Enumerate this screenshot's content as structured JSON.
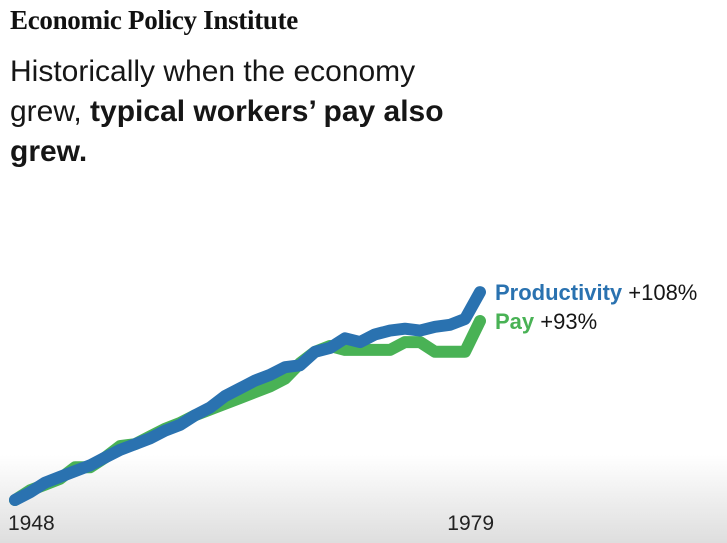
{
  "header": {
    "org_name": "Economic Policy Institute",
    "headline_regular": "Historically when the economy grew, ",
    "headline_bold": "typical workers’ pay also grew."
  },
  "colors": {
    "productivity": "#2a72b0",
    "pay": "#49b255",
    "text": "#161616"
  },
  "chart_data": {
    "type": "line",
    "title": "",
    "xlabel": "",
    "ylabel": "",
    "x_tick_labels": [
      "1948",
      "1979"
    ],
    "xlim": [
      1948,
      1979
    ],
    "ylim": [
      0,
      120
    ],
    "grid": false,
    "legend": "inline-right",
    "x": [
      1948,
      1949,
      1950,
      1951,
      1952,
      1953,
      1954,
      1955,
      1956,
      1957,
      1958,
      1959,
      1960,
      1961,
      1962,
      1963,
      1964,
      1965,
      1966,
      1967,
      1968,
      1969,
      1970,
      1971,
      1972,
      1973,
      1974,
      1975,
      1976,
      1977,
      1978,
      1979
    ],
    "series": [
      {
        "name": "Productivity",
        "change_label": "+108%",
        "color": "#2a72b0",
        "values": [
          0,
          4,
          9,
          12,
          15,
          18,
          22,
          26,
          29,
          32,
          36,
          39,
          44,
          48,
          54,
          58,
          62,
          65,
          69,
          70,
          77,
          79,
          84,
          82,
          86,
          88,
          89,
          88,
          90,
          91,
          94,
          108
        ]
      },
      {
        "name": "Pay",
        "change_label": "+93%",
        "color": "#49b255",
        "values": [
          0,
          5,
          8,
          11,
          17,
          17,
          22,
          28,
          29,
          33,
          37,
          40,
          44,
          47,
          50,
          53,
          56,
          59,
          63,
          71,
          77,
          80,
          78,
          78,
          78,
          78,
          82,
          82,
          77,
          77,
          77,
          93
        ]
      }
    ]
  }
}
